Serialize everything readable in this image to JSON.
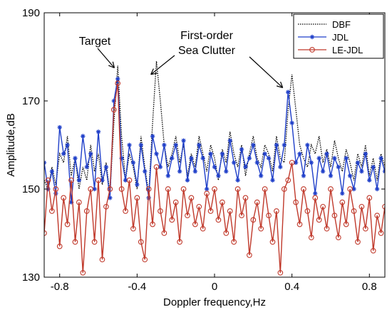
{
  "chart_data": {
    "type": "line",
    "title": "",
    "xlabel": "Doppler frequency,Hz",
    "ylabel": "Amplitude,dB",
    "xlim": [
      -0.88,
      0.88
    ],
    "ylim": [
      130,
      190
    ],
    "xticks": [
      "-0.8",
      "-0.4",
      "0",
      "0.4",
      "0.8"
    ],
    "xtick_values": [
      -0.8,
      -0.4,
      0,
      0.4,
      0.8
    ],
    "yticks": [
      "130",
      "150",
      "170",
      "190"
    ],
    "ytick_values": [
      130,
      150,
      170,
      190
    ],
    "grid": false,
    "legend_position": "top-right",
    "annotations": [
      {
        "text": "Target",
        "x": -0.52,
        "y": 177
      },
      {
        "text": "First-order",
        "x": -0.35,
        "y": 178.5
      },
      {
        "text": "Sea Clutter",
        "x": 0.35,
        "y": 173
      }
    ],
    "series": [
      {
        "name": "DBF",
        "style": "dotted",
        "color": "#000000",
        "marker": "none",
        "x": [
          -0.88,
          -0.86,
          -0.84,
          -0.82,
          -0.8,
          -0.78,
          -0.76,
          -0.74,
          -0.72,
          -0.7,
          -0.68,
          -0.66,
          -0.64,
          -0.62,
          -0.6,
          -0.58,
          -0.56,
          -0.54,
          -0.52,
          -0.5,
          -0.48,
          -0.46,
          -0.44,
          -0.42,
          -0.4,
          -0.38,
          -0.36,
          -0.34,
          -0.32,
          -0.3,
          -0.28,
          -0.26,
          -0.24,
          -0.22,
          -0.2,
          -0.18,
          -0.16,
          -0.14,
          -0.12,
          -0.1,
          -0.08,
          -0.06,
          -0.04,
          -0.02,
          0,
          0.02,
          0.04,
          0.06,
          0.08,
          0.1,
          0.12,
          0.14,
          0.16,
          0.18,
          0.2,
          0.22,
          0.24,
          0.26,
          0.28,
          0.3,
          0.32,
          0.34,
          0.36,
          0.38,
          0.4,
          0.42,
          0.44,
          0.46,
          0.48,
          0.5,
          0.52,
          0.54,
          0.56,
          0.58,
          0.6,
          0.62,
          0.64,
          0.66,
          0.68,
          0.7,
          0.72,
          0.74,
          0.76,
          0.78,
          0.8,
          0.82,
          0.84,
          0.86,
          0.88
        ],
        "y": [
          152,
          150,
          155,
          151,
          158,
          156,
          162,
          153,
          157,
          150,
          155,
          152,
          160,
          154,
          158,
          151,
          156,
          149,
          165,
          178,
          162,
          152,
          158,
          155,
          150,
          162,
          155,
          149,
          165,
          179,
          170,
          160,
          155,
          158,
          162,
          156,
          160,
          153,
          158,
          155,
          162,
          158,
          154,
          160,
          157,
          152,
          159,
          156,
          163,
          158,
          155,
          160,
          153,
          158,
          162,
          157,
          155,
          160,
          158,
          154,
          162,
          157,
          156,
          168,
          176,
          168,
          160,
          157,
          155,
          160,
          158,
          162,
          156,
          159,
          155,
          161,
          157,
          154,
          159,
          156,
          152,
          158,
          155,
          160,
          153,
          157,
          152,
          158,
          155
        ]
      },
      {
        "name": "JDL",
        "style": "solid",
        "color": "#1f3fc9",
        "marker": "star",
        "x": [
          -0.88,
          -0.86,
          -0.84,
          -0.82,
          -0.8,
          -0.78,
          -0.76,
          -0.74,
          -0.72,
          -0.7,
          -0.68,
          -0.66,
          -0.64,
          -0.62,
          -0.6,
          -0.58,
          -0.56,
          -0.54,
          -0.52,
          -0.5,
          -0.48,
          -0.46,
          -0.44,
          -0.42,
          -0.4,
          -0.38,
          -0.36,
          -0.34,
          -0.32,
          -0.3,
          -0.28,
          -0.26,
          -0.24,
          -0.22,
          -0.2,
          -0.18,
          -0.16,
          -0.14,
          -0.12,
          -0.1,
          -0.08,
          -0.06,
          -0.04,
          -0.02,
          0,
          0.02,
          0.04,
          0.06,
          0.08,
          0.1,
          0.12,
          0.14,
          0.16,
          0.18,
          0.2,
          0.22,
          0.24,
          0.26,
          0.28,
          0.3,
          0.32,
          0.34,
          0.36,
          0.38,
          0.4,
          0.42,
          0.44,
          0.46,
          0.48,
          0.5,
          0.52,
          0.54,
          0.56,
          0.58,
          0.6,
          0.62,
          0.64,
          0.66,
          0.68,
          0.7,
          0.72,
          0.74,
          0.76,
          0.78,
          0.8,
          0.82,
          0.84,
          0.86,
          0.88
        ],
        "y": [
          156,
          150,
          154,
          149,
          164,
          158,
          160,
          147,
          157,
          152,
          162,
          155,
          158,
          150,
          163,
          152,
          155,
          148,
          170,
          175,
          157,
          152,
          160,
          156,
          151,
          160,
          154,
          148,
          162,
          158,
          155,
          160,
          153,
          157,
          160,
          154,
          161,
          152,
          157,
          154,
          160,
          157,
          150,
          158,
          155,
          153,
          158,
          154,
          161,
          156,
          152,
          159,
          155,
          157,
          160,
          156,
          153,
          158,
          157,
          152,
          160,
          155,
          160,
          172,
          165,
          156,
          158,
          153,
          160,
          156,
          149,
          157,
          154,
          158,
          153,
          157,
          155,
          149,
          157,
          153,
          150,
          156,
          154,
          158,
          152,
          155,
          150,
          157,
          154
        ]
      },
      {
        "name": "LE-JDL",
        "style": "solid",
        "color": "#c0392b",
        "marker": "circle",
        "x": [
          -0.88,
          -0.86,
          -0.84,
          -0.82,
          -0.8,
          -0.78,
          -0.76,
          -0.74,
          -0.72,
          -0.7,
          -0.68,
          -0.66,
          -0.64,
          -0.62,
          -0.6,
          -0.58,
          -0.56,
          -0.54,
          -0.52,
          -0.5,
          -0.48,
          -0.46,
          -0.44,
          -0.42,
          -0.4,
          -0.38,
          -0.36,
          -0.34,
          -0.32,
          -0.3,
          -0.28,
          -0.26,
          -0.24,
          -0.22,
          -0.2,
          -0.18,
          -0.16,
          -0.14,
          -0.12,
          -0.1,
          -0.08,
          -0.06,
          -0.04,
          -0.02,
          0,
          0.02,
          0.04,
          0.06,
          0.08,
          0.1,
          0.12,
          0.14,
          0.16,
          0.18,
          0.2,
          0.22,
          0.24,
          0.26,
          0.28,
          0.3,
          0.32,
          0.34,
          0.36,
          0.38,
          0.4,
          0.42,
          0.44,
          0.46,
          0.48,
          0.5,
          0.52,
          0.54,
          0.56,
          0.58,
          0.6,
          0.62,
          0.64,
          0.66,
          0.68,
          0.7,
          0.72,
          0.74,
          0.76,
          0.78,
          0.8,
          0.82,
          0.84,
          0.86,
          0.88
        ],
        "y": [
          140,
          152,
          145,
          150,
          137,
          148,
          142,
          152,
          138,
          147,
          131,
          145,
          150,
          138,
          152,
          134,
          146,
          150,
          168,
          174,
          150,
          145,
          152,
          141,
          148,
          138,
          134,
          150,
          142,
          155,
          145,
          140,
          150,
          143,
          147,
          138,
          150,
          144,
          148,
          142,
          146,
          141,
          149,
          145,
          150,
          143,
          147,
          140,
          145,
          138,
          150,
          144,
          148,
          135,
          143,
          147,
          141,
          150,
          144,
          138,
          145,
          131,
          150,
          152,
          156,
          147,
          142,
          150,
          145,
          139,
          148,
          143,
          146,
          141,
          150,
          144,
          139,
          147,
          142,
          150,
          145,
          138,
          146,
          141,
          148,
          136,
          144,
          140,
          146
        ]
      }
    ]
  }
}
